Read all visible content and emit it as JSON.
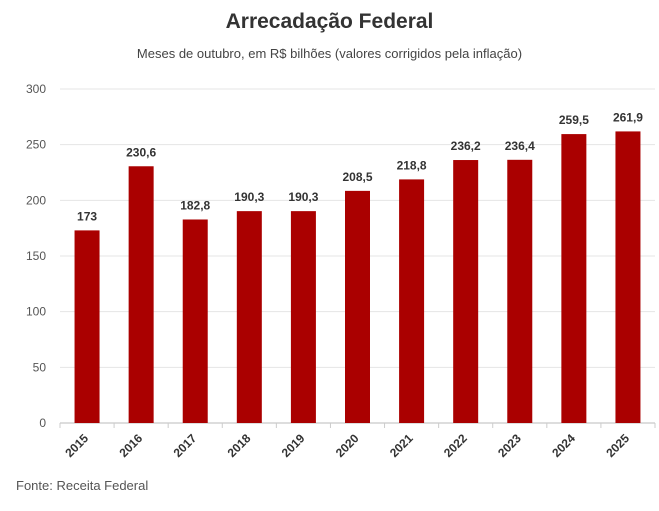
{
  "chart_data": {
    "type": "bar",
    "title": "Arrecadação Federal",
    "subtitle": "Meses de outubro, em R$ bilhões (valores corrigidos pela inflação)",
    "categories": [
      "2015",
      "2016",
      "2017",
      "2018",
      "2019",
      "2020",
      "2021",
      "2022",
      "2023",
      "2024",
      "2025"
    ],
    "values": [
      173,
      230.6,
      182.8,
      190.3,
      190.3,
      208.5,
      218.8,
      236.2,
      236.4,
      259.5,
      261.9
    ],
    "value_labels": [
      "173",
      "230,6",
      "182,8",
      "190,3",
      "190,3",
      "208,5",
      "218,8",
      "236,2",
      "236,4",
      "259,5",
      "261,9"
    ],
    "xlabel": "",
    "ylabel": "",
    "ylim": [
      0,
      300
    ],
    "yticks": [
      0,
      50,
      100,
      150,
      200,
      250,
      300
    ],
    "grid": true,
    "bar_color": "#aa0000",
    "source": "Fonte: Receita Federal"
  }
}
